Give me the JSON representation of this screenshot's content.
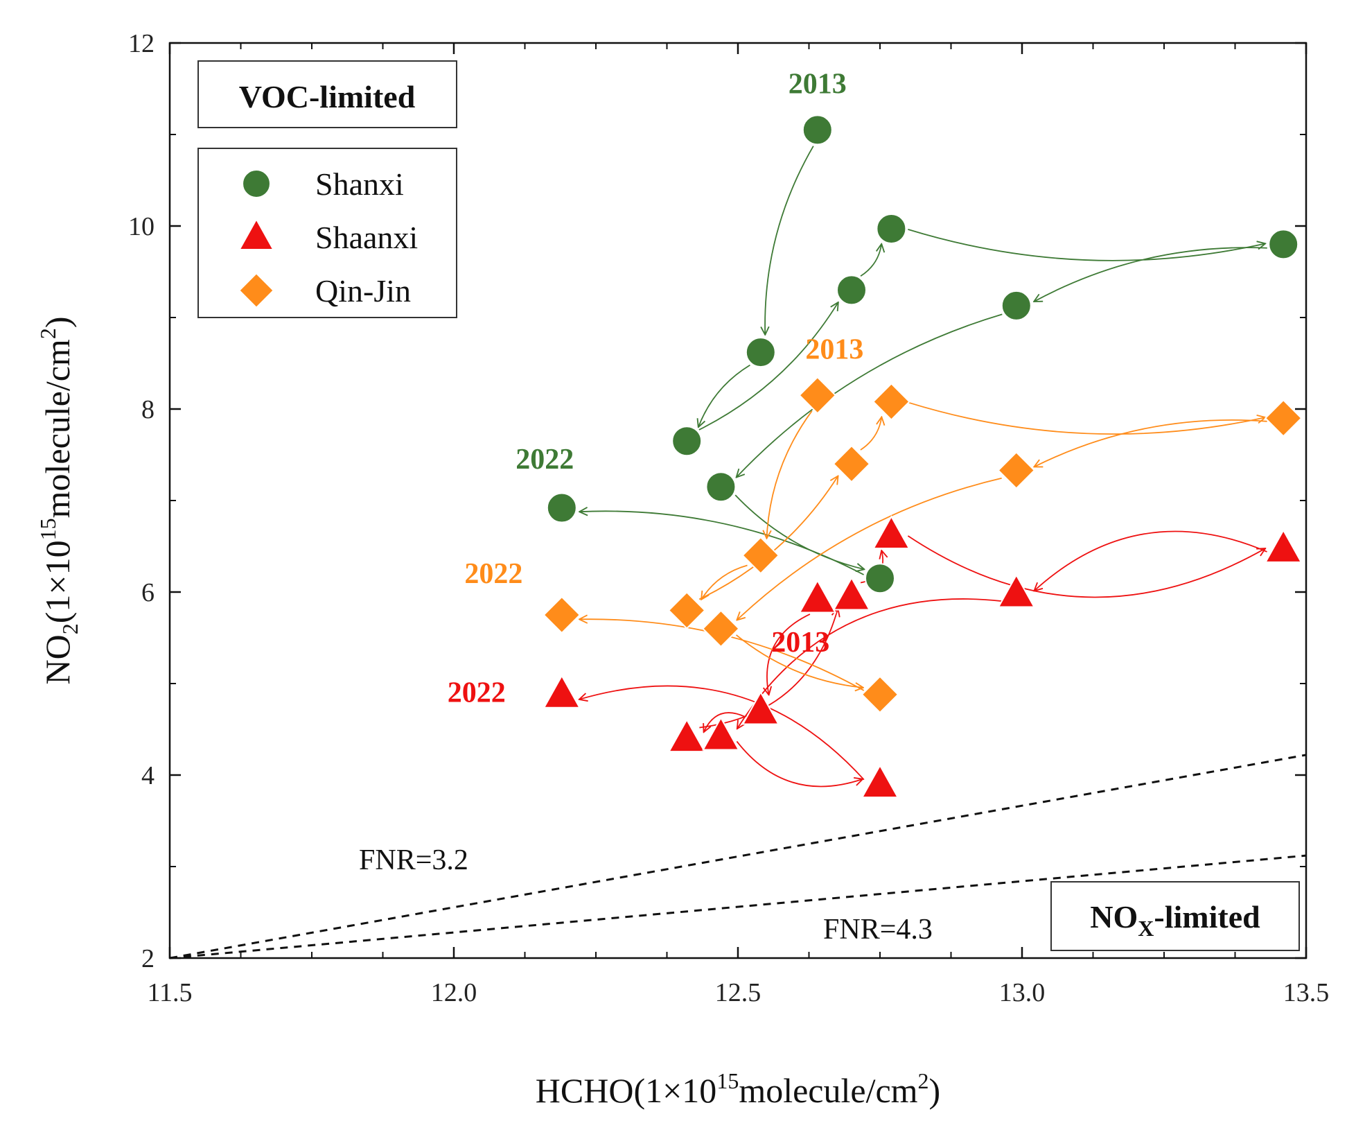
{
  "chart_data": {
    "type": "scatter",
    "xlabel": {
      "main": "HCHO(1×10",
      "sup": "15",
      "end": "molecule/cm",
      "sup2": "2",
      "close": ")"
    },
    "ylabel": {
      "main": "NO",
      "sub": "2",
      "mid": "(1×10",
      "sup": "15",
      "end": "molecule/cm",
      "sup2": "2",
      "close": ")"
    },
    "xlim": [
      11.5,
      13.5
    ],
    "ylim": [
      2,
      12
    ],
    "x_ticks": [
      "11.5",
      "12.0",
      "12.5",
      "13.0",
      "13.5"
    ],
    "y_ticks": [
      "2",
      "4",
      "6",
      "8",
      "10",
      "12"
    ],
    "colors": {
      "Shanxi": "#3e7a35",
      "Shaanxi": "#ee1111",
      "Qin-Jin": "#ff8c1a"
    },
    "series": [
      {
        "name": "Shanxi",
        "marker": "circle",
        "points": [
          {
            "x": 12.64,
            "y": 11.05
          },
          {
            "x": 12.54,
            "y": 8.62
          },
          {
            "x": 12.41,
            "y": 7.65
          },
          {
            "x": 12.7,
            "y": 9.3
          },
          {
            "x": 12.77,
            "y": 9.97
          },
          {
            "x": 13.46,
            "y": 9.8
          },
          {
            "x": 12.99,
            "y": 9.13
          },
          {
            "x": 12.47,
            "y": 7.15
          },
          {
            "x": 12.75,
            "y": 6.15
          },
          {
            "x": 12.19,
            "y": 6.92
          }
        ]
      },
      {
        "name": "Shaanxi",
        "marker": "triangle",
        "points": [
          {
            "x": 12.64,
            "y": 5.92
          },
          {
            "x": 12.54,
            "y": 4.7
          },
          {
            "x": 12.41,
            "y": 4.4
          },
          {
            "x": 12.7,
            "y": 5.95
          },
          {
            "x": 12.77,
            "y": 6.62
          },
          {
            "x": 13.46,
            "y": 6.47
          },
          {
            "x": 12.99,
            "y": 5.98
          },
          {
            "x": 12.47,
            "y": 4.42
          },
          {
            "x": 12.75,
            "y": 3.9
          },
          {
            "x": 12.19,
            "y": 4.88
          }
        ]
      },
      {
        "name": "Qin-Jin",
        "marker": "diamond",
        "points": [
          {
            "x": 12.64,
            "y": 8.15
          },
          {
            "x": 12.54,
            "y": 6.4
          },
          {
            "x": 12.41,
            "y": 5.8
          },
          {
            "x": 12.7,
            "y": 7.4
          },
          {
            "x": 12.77,
            "y": 8.08
          },
          {
            "x": 13.46,
            "y": 7.9
          },
          {
            "x": 12.99,
            "y": 7.33
          },
          {
            "x": 12.47,
            "y": 5.6
          },
          {
            "x": 12.75,
            "y": 4.88
          },
          {
            "x": 12.19,
            "y": 5.75
          }
        ]
      }
    ],
    "reference_lines": [
      {
        "label": "FNR=3.2",
        "points": [
          [
            11.5,
            2.0
          ],
          [
            13.5,
            4.22
          ]
        ]
      },
      {
        "label": "FNR=4.3",
        "points": [
          [
            11.5,
            2.0
          ],
          [
            13.5,
            3.12
          ]
        ]
      }
    ],
    "annotations": [
      {
        "text": "2013",
        "series": "Shanxi",
        "x": 12.64,
        "y": 11.45
      },
      {
        "text": "2022",
        "series": "Shanxi",
        "x": 12.16,
        "y": 7.35
      },
      {
        "text": "2013",
        "series": "Qin-Jin",
        "x": 12.67,
        "y": 8.55
      },
      {
        "text": "2022",
        "series": "Qin-Jin",
        "x": 12.07,
        "y": 6.1
      },
      {
        "text": "2013",
        "series": "Shaanxi",
        "x": 12.61,
        "y": 5.35
      },
      {
        "text": "2022",
        "series": "Shaanxi",
        "x": 12.04,
        "y": 4.8
      }
    ],
    "region_labels": {
      "voc": "VOC-limited",
      "nox_main": "NO",
      "nox_sub": "X",
      "nox_end": "-limited"
    },
    "legend": [
      "Shanxi",
      "Shaanxi",
      "Qin-Jin"
    ]
  }
}
